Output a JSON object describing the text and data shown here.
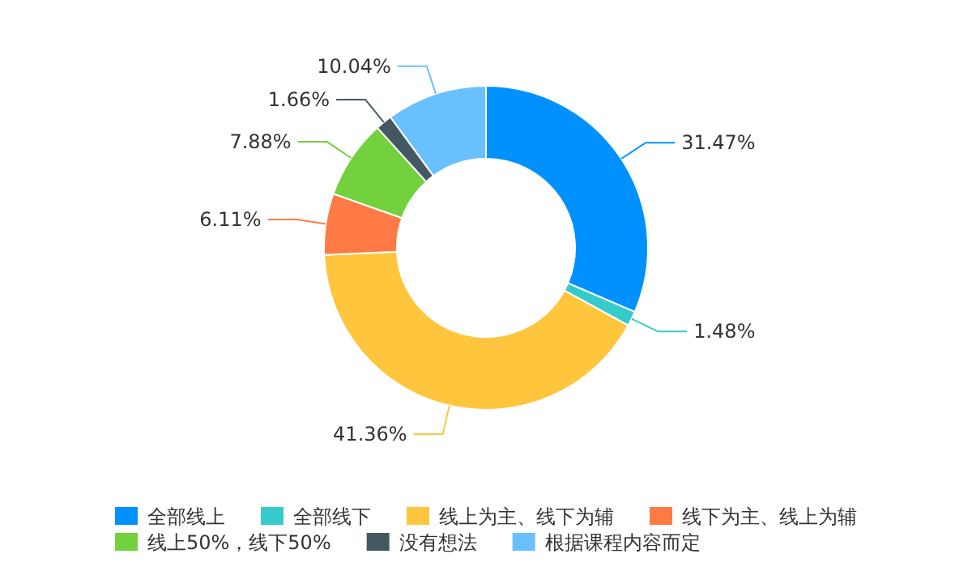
{
  "chart_data": {
    "type": "donut",
    "categories": [
      "全部线上",
      "全部线下",
      "线上为主、线下为辅",
      "线下为主、线上为辅",
      "线上50%，线下50%",
      "没有想法",
      "根据课程内容而定"
    ],
    "values": [
      31.47,
      1.48,
      41.36,
      6.11,
      7.88,
      1.66,
      10.04
    ],
    "colors": [
      "#0091ff",
      "#36cbcb",
      "#ffc53d",
      "#ff7a45",
      "#73d13d",
      "#435863",
      "#69c0ff"
    ],
    "value_labels": [
      "31.47%",
      "1.48%",
      "41.36%",
      "6.11%",
      "7.88%",
      "1.66%",
      "10.04%"
    ],
    "legend": "bottom"
  }
}
